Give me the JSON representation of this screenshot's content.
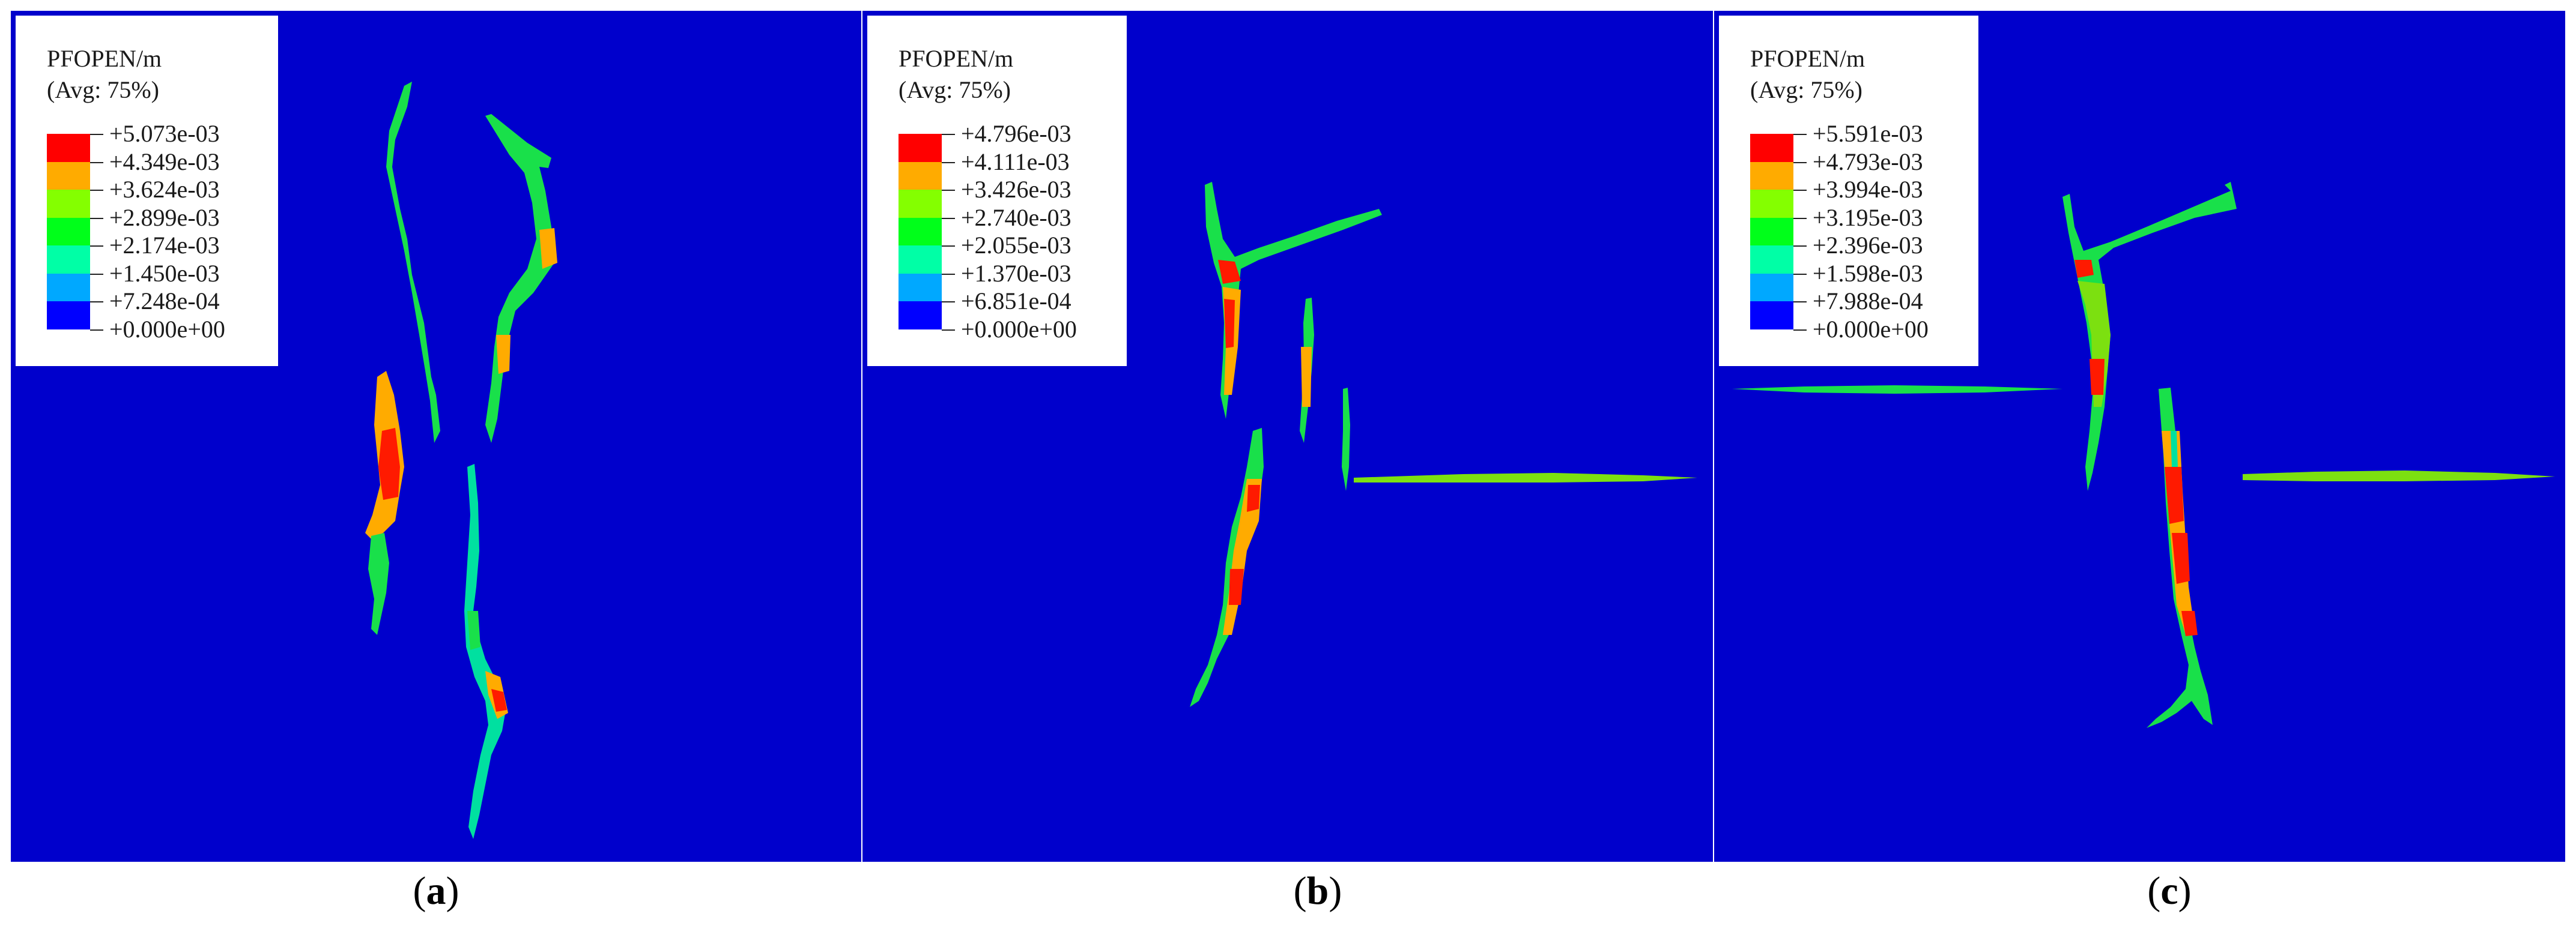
{
  "panels": [
    {
      "id": "a",
      "caption_open": "(",
      "caption_letter": "a",
      "caption_close": ")",
      "legend": {
        "title": "PFOPEN/m",
        "subtitle": "(Avg: 75%)",
        "values": [
          "+5.073e-03",
          "+4.349e-03",
          "+3.624e-03",
          "+2.899e-03",
          "+2.174e-03",
          "+1.450e-03",
          "+7.248e-04",
          "+0.000e+00"
        ]
      }
    },
    {
      "id": "b",
      "caption_open": "(",
      "caption_letter": "b",
      "caption_close": ")",
      "legend": {
        "title": "PFOPEN/m",
        "subtitle": "(Avg: 75%)",
        "values": [
          "+4.796e-03",
          "+4.111e-03",
          "+3.426e-03",
          "+2.740e-03",
          "+2.055e-03",
          "+1.370e-03",
          "+6.851e-04",
          "+0.000e+00"
        ]
      }
    },
    {
      "id": "c",
      "caption_open": "(",
      "caption_letter": "c",
      "caption_close": ")",
      "legend": {
        "title": "PFOPEN/m",
        "subtitle": "(Avg: 75%)",
        "values": [
          "+5.591e-03",
          "+4.793e-03",
          "+3.994e-03",
          "+3.195e-03",
          "+2.396e-03",
          "+1.598e-03",
          "+7.988e-04",
          "+0.000e+00"
        ]
      }
    }
  ],
  "colors": {
    "background": "#0000cc",
    "legend_bands": [
      "#ff0000",
      "#ffab00",
      "#84ff00",
      "#00ff1a",
      "#00ffa6",
      "#00a8ff",
      "#0000ff"
    ],
    "crack_green": "#19e04a",
    "crack_teal": "#00e0a0",
    "crack_orange": "#f0a020",
    "crack_red": "#ff1a00",
    "crack_lime": "#7ce010"
  }
}
